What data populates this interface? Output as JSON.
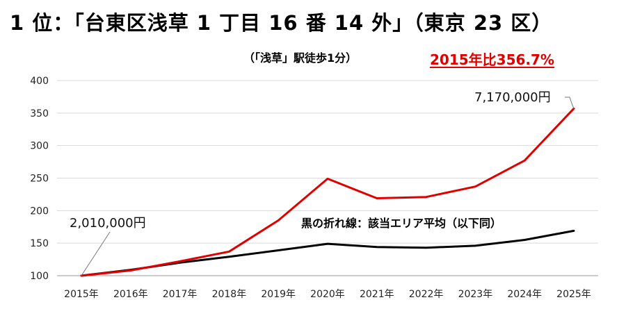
{
  "header": {
    "title": "1 位：「台東区浅草 1 丁目 16 番 14 外」（東京 23 区）",
    "subtitle": "（「浅草」駅徒歩1分）",
    "growth": "2015年比356.7%"
  },
  "chart_data": {
    "type": "line",
    "categories": [
      "2015年",
      "2016年",
      "2017年",
      "2018年",
      "2019年",
      "2020年",
      "2021年",
      "2022年",
      "2023年",
      "2024年",
      "2025年"
    ],
    "yticks": [
      "100",
      "150",
      "200",
      "250",
      "300",
      "350",
      "400"
    ],
    "ylim": [
      100,
      400
    ],
    "grid": true,
    "series": [
      {
        "color": "#e00000",
        "values": [
          100,
          108,
          122,
          137,
          185,
          249,
          219,
          221,
          237,
          277,
          357
        ]
      },
      {
        "name": "黒の折れ線：該当エリア平均（以下同）",
        "color": "#000000",
        "values": [
          100,
          109,
          120,
          129,
          139,
          149,
          144,
          143,
          146,
          155,
          169
        ]
      }
    ],
    "annotations": {
      "start_price": "2,010,000円",
      "end_price": "7,170,000円"
    }
  }
}
